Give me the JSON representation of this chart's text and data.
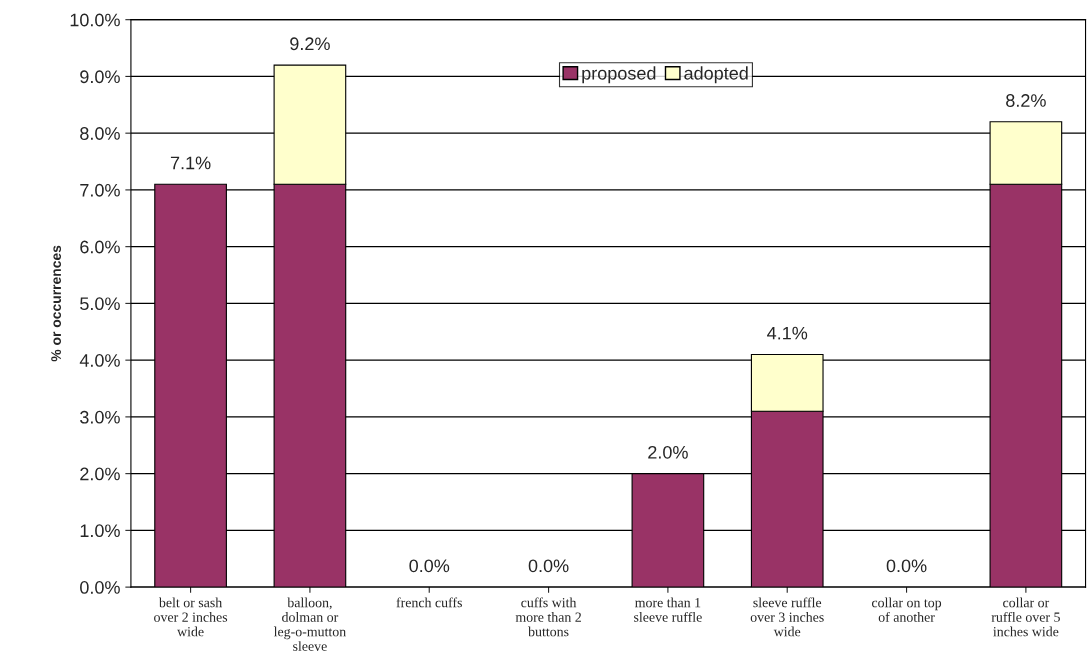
{
  "chart_data": {
    "type": "bar",
    "stacked": true,
    "ylabel": "% or occurrences",
    "categories": [
      "belt or sash\nover 2 inches\nwide",
      "balloon,\ndolman or\nleg-o-mutton\nsleeve",
      "french cuffs",
      "cuffs with\nmore than 2\nbuttons",
      "more than 1\nsleeve ruffle",
      "sleeve ruffle\nover 3 inches\nwide",
      "collar on top\nof another",
      "collar or\nruffle over 5\ninches wide"
    ],
    "series": [
      {
        "name": "proposed",
        "color": "#993366",
        "values": [
          7.1,
          7.1,
          0,
          0,
          2.0,
          3.1,
          0,
          7.1
        ]
      },
      {
        "name": "adopted",
        "color": "#ffffcc",
        "values": [
          0,
          2.1,
          0,
          0,
          0,
          1.0,
          0,
          1.1
        ]
      }
    ],
    "totals": [
      "7.1%",
      "9.2%",
      "0.0%",
      "0.0%",
      "2.0%",
      "4.1%",
      "0.0%",
      "8.2%"
    ],
    "ylim": [
      0,
      10
    ],
    "yticks": [
      {
        "value": 0,
        "label": "0.0%"
      },
      {
        "value": 1,
        "label": "1.0%"
      },
      {
        "value": 2,
        "label": "2.0%"
      },
      {
        "value": 3,
        "label": "3.0%"
      },
      {
        "value": 4,
        "label": "4.0%"
      },
      {
        "value": 5,
        "label": "5.0%"
      },
      {
        "value": 6,
        "label": "6.0%"
      },
      {
        "value": 7,
        "label": "7.0%"
      },
      {
        "value": 8,
        "label": "8.0%"
      },
      {
        "value": 9,
        "label": "9.0%"
      },
      {
        "value": 10,
        "label": "10.0%"
      }
    ],
    "grid": "y",
    "legend": "top"
  }
}
